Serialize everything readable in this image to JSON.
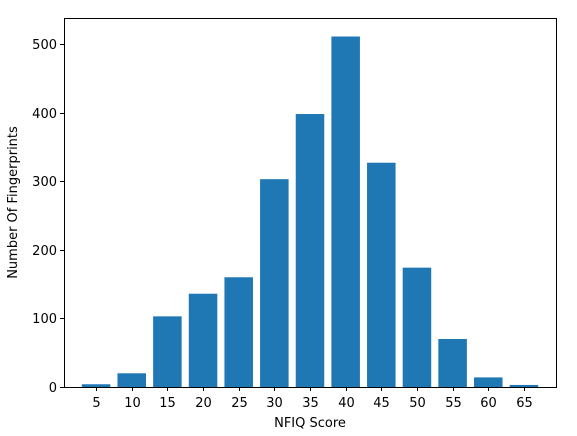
{
  "chart_data": {
    "type": "bar",
    "title": "",
    "xlabel": "NFIQ Score",
    "ylabel": "Number Of Fingerprints",
    "categories": [
      "5",
      "10",
      "15",
      "20",
      "25",
      "30",
      "35",
      "40",
      "45",
      "50",
      "55",
      "60",
      "65"
    ],
    "x": [
      5,
      10,
      15,
      20,
      25,
      30,
      35,
      40,
      45,
      50,
      55,
      60,
      65
    ],
    "values": [
      4,
      20,
      103,
      136,
      160,
      303,
      398,
      511,
      327,
      174,
      70,
      14,
      3
    ],
    "ylim": [
      0,
      538
    ],
    "xlim": [
      0.5,
      69.5
    ],
    "bar_width": 4,
    "yticks": [
      0,
      100,
      200,
      300,
      400,
      500
    ],
    "xticks": [
      5,
      10,
      15,
      20,
      25,
      30,
      35,
      40,
      45,
      50,
      55,
      60,
      65
    ],
    "grid": false,
    "bar_color": "#1f77b4"
  }
}
